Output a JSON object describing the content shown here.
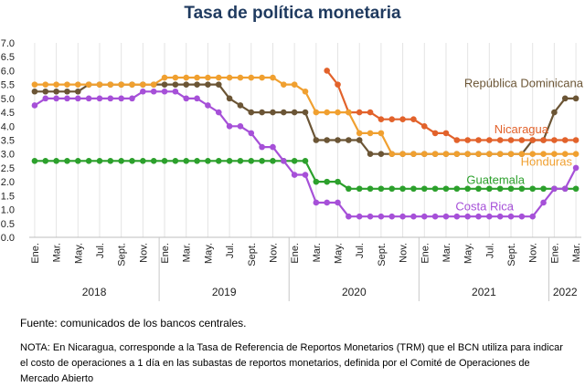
{
  "title": "Tasa de política monetaria",
  "source": "Fuente: comunicados de los bancos centrales.",
  "note": "NOTA: En Nicaragua, corresponde a la Tasa de Referencia de Reportos Monetarios (TRM) que el BCN utiliza para indicar el costo de operaciones a 1 día en las subastas de reportos monetarios, definida por el Comité de Operaciones de Mercado Abierto",
  "chart_data": {
    "type": "line",
    "x_months": [
      "2018-01",
      "2018-02",
      "2018-03",
      "2018-04",
      "2018-05",
      "2018-06",
      "2018-07",
      "2018-08",
      "2018-09",
      "2018-10",
      "2018-11",
      "2018-12",
      "2019-01",
      "2019-02",
      "2019-03",
      "2019-04",
      "2019-05",
      "2019-06",
      "2019-07",
      "2019-08",
      "2019-09",
      "2019-10",
      "2019-11",
      "2019-12",
      "2020-01",
      "2020-02",
      "2020-03",
      "2020-04",
      "2020-05",
      "2020-06",
      "2020-07",
      "2020-08",
      "2020-09",
      "2020-10",
      "2020-11",
      "2020-12",
      "2021-01",
      "2021-02",
      "2021-03",
      "2021-04",
      "2021-05",
      "2021-06",
      "2021-07",
      "2021-08",
      "2021-09",
      "2021-10",
      "2021-11",
      "2021-12",
      "2022-01",
      "2022-02",
      "2022-03"
    ],
    "ylim": [
      0,
      7
    ],
    "yticks": [
      "0.0",
      "0.5",
      "1.0",
      "1.5",
      "2.0",
      "2.5",
      "3.0",
      "3.5",
      "4.0",
      "4.5",
      "5.0",
      "5.5",
      "6.0",
      "6.5",
      "7.0"
    ],
    "month_tick_labels": [
      {
        "i": 0,
        "label": "Ene."
      },
      {
        "i": 2,
        "label": "Mar."
      },
      {
        "i": 4,
        "label": "May."
      },
      {
        "i": 6,
        "label": "Jul."
      },
      {
        "i": 8,
        "label": "Sept."
      },
      {
        "i": 10,
        "label": "Nov."
      },
      {
        "i": 12,
        "label": "Ene."
      },
      {
        "i": 14,
        "label": "Mar."
      },
      {
        "i": 16,
        "label": "May."
      },
      {
        "i": 18,
        "label": "Jul."
      },
      {
        "i": 20,
        "label": "Sept."
      },
      {
        "i": 22,
        "label": "Nov."
      },
      {
        "i": 24,
        "label": "Ene."
      },
      {
        "i": 26,
        "label": "Mar."
      },
      {
        "i": 28,
        "label": "May."
      },
      {
        "i": 30,
        "label": "Jul."
      },
      {
        "i": 32,
        "label": "Sept."
      },
      {
        "i": 34,
        "label": "Nov."
      },
      {
        "i": 36,
        "label": "Ene."
      },
      {
        "i": 38,
        "label": "Mar."
      },
      {
        "i": 40,
        "label": "May."
      },
      {
        "i": 42,
        "label": "Jul."
      },
      {
        "i": 44,
        "label": "Sept."
      },
      {
        "i": 46,
        "label": "Nov."
      },
      {
        "i": 48,
        "label": "Ene."
      },
      {
        "i": 50,
        "label": "Mar."
      }
    ],
    "years": [
      {
        "label": "2018",
        "start": 0,
        "end": 11
      },
      {
        "label": "2019",
        "start": 12,
        "end": 23
      },
      {
        "label": "2020",
        "start": 24,
        "end": 35
      },
      {
        "label": "2021",
        "start": 36,
        "end": 47
      },
      {
        "label": "2022",
        "start": 48,
        "end": 50
      }
    ],
    "grid": "vertical",
    "series": [
      {
        "name": "República Dominicana",
        "color": "#6b5535",
        "values": [
          5.25,
          5.25,
          5.25,
          5.25,
          5.25,
          5.5,
          5.5,
          5.5,
          5.5,
          5.5,
          5.5,
          5.5,
          5.5,
          5.5,
          5.5,
          5.5,
          5.5,
          5.5,
          5.0,
          4.75,
          4.5,
          4.5,
          4.5,
          4.5,
          4.5,
          4.5,
          3.5,
          3.5,
          3.5,
          3.5,
          3.5,
          3.0,
          3.0,
          3.0,
          3.0,
          3.0,
          3.0,
          3.0,
          3.0,
          3.0,
          3.0,
          3.0,
          3.0,
          3.0,
          3.0,
          3.0,
          3.5,
          3.5,
          4.5,
          5.0,
          5.0
        ]
      },
      {
        "name": "Nicaragua",
        "color": "#e2622b",
        "values": [
          null,
          null,
          null,
          null,
          null,
          null,
          null,
          null,
          null,
          null,
          null,
          null,
          null,
          null,
          null,
          null,
          null,
          null,
          null,
          null,
          null,
          null,
          null,
          null,
          null,
          null,
          null,
          6.0,
          5.5,
          4.5,
          4.5,
          4.5,
          4.25,
          4.25,
          4.25,
          4.25,
          4.0,
          3.75,
          3.75,
          3.5,
          3.5,
          3.5,
          3.5,
          3.5,
          3.5,
          3.5,
          3.5,
          3.5,
          3.5,
          3.5,
          3.5
        ]
      },
      {
        "name": "Honduras",
        "color": "#f0a030",
        "values": [
          5.5,
          5.5,
          5.5,
          5.5,
          5.5,
          5.5,
          5.5,
          5.5,
          5.5,
          5.5,
          5.5,
          5.5,
          5.75,
          5.75,
          5.75,
          5.75,
          5.75,
          5.75,
          5.75,
          5.75,
          5.75,
          5.75,
          5.75,
          5.5,
          5.5,
          5.25,
          4.5,
          4.5,
          4.5,
          4.5,
          3.75,
          3.75,
          3.75,
          3.0,
          3.0,
          3.0,
          3.0,
          3.0,
          3.0,
          3.0,
          3.0,
          3.0,
          3.0,
          3.0,
          3.0,
          3.0,
          3.0,
          3.0,
          3.0,
          3.0,
          3.0
        ]
      },
      {
        "name": "Guatemala",
        "color": "#2ca02c",
        "values": [
          2.75,
          2.75,
          2.75,
          2.75,
          2.75,
          2.75,
          2.75,
          2.75,
          2.75,
          2.75,
          2.75,
          2.75,
          2.75,
          2.75,
          2.75,
          2.75,
          2.75,
          2.75,
          2.75,
          2.75,
          2.75,
          2.75,
          2.75,
          2.75,
          2.75,
          2.75,
          2.0,
          2.0,
          2.0,
          1.75,
          1.75,
          1.75,
          1.75,
          1.75,
          1.75,
          1.75,
          1.75,
          1.75,
          1.75,
          1.75,
          1.75,
          1.75,
          1.75,
          1.75,
          1.75,
          1.75,
          1.75,
          1.75,
          1.75,
          1.75,
          1.75
        ]
      },
      {
        "name": "Costa Rica",
        "color": "#a650d8",
        "values": [
          4.75,
          5.0,
          5.0,
          5.0,
          5.0,
          5.0,
          5.0,
          5.0,
          5.0,
          5.0,
          5.25,
          5.25,
          5.25,
          5.25,
          5.0,
          5.0,
          4.75,
          4.5,
          4.0,
          4.0,
          3.75,
          3.25,
          3.25,
          2.75,
          2.25,
          2.25,
          1.25,
          1.25,
          1.25,
          0.75,
          0.75,
          0.75,
          0.75,
          0.75,
          0.75,
          0.75,
          0.75,
          0.75,
          0.75,
          0.75,
          0.75,
          0.75,
          0.75,
          0.75,
          0.75,
          0.75,
          0.75,
          1.25,
          1.75,
          1.75,
          2.5
        ]
      }
    ]
  }
}
